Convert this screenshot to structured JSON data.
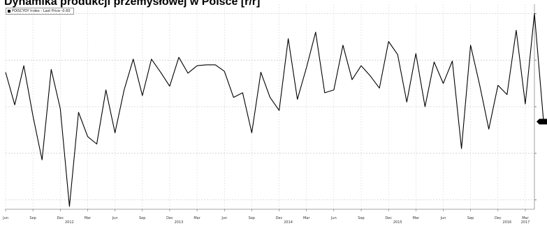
{
  "title": "Dynamika produkcji przemysłowej w Polsce [r/r]",
  "chart_data": {
    "type": "line",
    "legend": "POISCYOY Index - Last Price -0.60",
    "last_price": -0.6,
    "x_ticks": [
      "Jun",
      "Sep",
      "Dec",
      "Mar",
      "Jun",
      "Sep",
      "Dec",
      "Mar",
      "Jun",
      "Sep",
      "Dec",
      "Mar",
      "Jun",
      "Sep",
      "Dec",
      "Mar",
      "Jun",
      "Sep",
      "Dec",
      "Mar"
    ],
    "years": [
      "2012",
      "2013",
      "2014",
      "2015",
      "2016",
      "2017"
    ],
    "grid": true,
    "series": [
      {
        "values": [
          4.7,
          1.2,
          5.4,
          0.0,
          -4.7,
          5.0,
          0.8,
          -9.7,
          0.4,
          -2.2,
          -3.0,
          2.8,
          -1.8,
          2.8,
          6.1,
          2.2,
          6.1,
          4.7,
          3.2,
          6.3,
          4.6,
          5.4,
          5.5,
          5.5,
          4.8,
          2.0,
          2.5,
          -1.8,
          4.7,
          2.0,
          0.6,
          8.3,
          1.8,
          5.2,
          9.0,
          2.5,
          2.8,
          7.6,
          3.9,
          5.4,
          4.3,
          3.0,
          8.0,
          6.6,
          1.5,
          6.7,
          1.0,
          5.8,
          3.5,
          5.9,
          -3.5,
          7.6,
          3.3,
          -1.4,
          3.3,
          2.3,
          9.2,
          1.3,
          11.0,
          -0.6
        ]
      }
    ]
  }
}
